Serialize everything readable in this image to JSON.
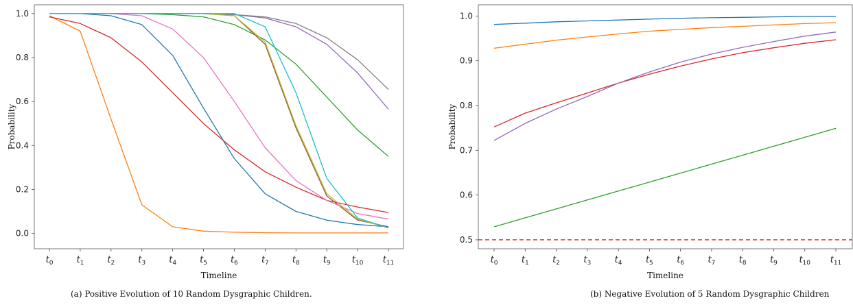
{
  "chart_data": [
    {
      "type": "line",
      "caption": "(a) Positive Evolution of 10 Random Dysgraphic Children.",
      "xlabel": "Timeline",
      "ylabel": "Probability",
      "categories": [
        "t_0",
        "t_1",
        "t_2",
        "t_3",
        "t_4",
        "t_5",
        "t_6",
        "t_7",
        "t_8",
        "t_9",
        "t_10",
        "t_11"
      ],
      "yticks": [
        "0.0",
        "0.2",
        "0.4",
        "0.6",
        "0.8",
        "1.0"
      ],
      "ylim": [
        -0.07,
        1.04
      ],
      "grid": false,
      "series": [
        {
          "color": "#1f77b4",
          "values": [
            1.0,
            1.0,
            0.99,
            0.95,
            0.81,
            0.57,
            0.34,
            0.18,
            0.1,
            0.06,
            0.04,
            0.03
          ]
        },
        {
          "color": "#ff7f0e",
          "values": [
            0.99,
            0.92,
            0.52,
            0.13,
            0.03,
            0.01,
            0.005,
            0.003,
            0.002,
            0.002,
            0.002,
            0.002
          ]
        },
        {
          "color": "#2ca02c",
          "values": [
            1.0,
            1.0,
            1.0,
            1.0,
            0.995,
            0.985,
            0.95,
            0.88,
            0.77,
            0.62,
            0.47,
            0.35
          ]
        },
        {
          "color": "#d62728",
          "values": [
            0.985,
            0.955,
            0.89,
            0.78,
            0.64,
            0.5,
            0.38,
            0.28,
            0.21,
            0.15,
            0.12,
            0.095
          ]
        },
        {
          "color": "#9467bd",
          "values": [
            1.0,
            1.0,
            1.0,
            1.0,
            1.0,
            1.0,
            0.995,
            0.98,
            0.94,
            0.86,
            0.73,
            0.565
          ]
        },
        {
          "color": "#8c564b",
          "values": [
            1.0,
            1.0,
            1.0,
            1.0,
            1.0,
            1.0,
            0.99,
            0.86,
            0.48,
            0.17,
            0.06,
            0.03
          ]
        },
        {
          "color": "#e377c2",
          "values": [
            1.0,
            1.0,
            1.0,
            0.99,
            0.93,
            0.8,
            0.6,
            0.39,
            0.24,
            0.15,
            0.09,
            0.065
          ]
        },
        {
          "color": "#7f7f7f",
          "values": [
            1.0,
            1.0,
            1.0,
            1.0,
            1.0,
            1.0,
            0.995,
            0.985,
            0.955,
            0.89,
            0.79,
            0.655
          ]
        },
        {
          "color": "#bcbd22",
          "values": [
            1.0,
            1.0,
            1.0,
            1.0,
            1.0,
            1.0,
            0.99,
            0.87,
            0.49,
            0.18,
            0.065,
            0.025
          ]
        },
        {
          "color": "#17becf",
          "values": [
            1.0,
            1.0,
            1.0,
            1.0,
            1.0,
            1.0,
            1.0,
            0.94,
            0.64,
            0.25,
            0.07,
            0.025
          ]
        }
      ]
    },
    {
      "type": "line",
      "caption": "(b) Negative Evolution of 5 Random Dysgraphic Children",
      "xlabel": "Timeline",
      "ylabel": "Probability",
      "categories": [
        "t_0",
        "t_1",
        "t_2",
        "t_3",
        "t_4",
        "t_5",
        "t_6",
        "t_7",
        "t_8",
        "t_9",
        "t_10",
        "t_11"
      ],
      "yticks": [
        "0.5",
        "0.6",
        "0.7",
        "0.8",
        "0.9",
        "1.0"
      ],
      "ylim": [
        0.48,
        1.025
      ],
      "grid": false,
      "reference_line": {
        "value": 0.5,
        "color": "#d62728",
        "style": "dashed"
      },
      "series": [
        {
          "color": "#1f77b4",
          "values": [
            0.981,
            0.984,
            0.987,
            0.989,
            0.991,
            0.993,
            0.995,
            0.996,
            0.997,
            0.998,
            0.999,
            0.999
          ]
        },
        {
          "color": "#ff7f0e",
          "values": [
            0.928,
            0.937,
            0.946,
            0.953,
            0.96,
            0.966,
            0.97,
            0.974,
            0.977,
            0.98,
            0.983,
            0.985
          ]
        },
        {
          "color": "#2ca02c",
          "values": [
            0.529,
            0.549,
            0.569,
            0.589,
            0.609,
            0.629,
            0.649,
            0.669,
            0.689,
            0.709,
            0.729,
            0.749
          ]
        },
        {
          "color": "#d62728",
          "values": [
            0.752,
            0.783,
            0.806,
            0.828,
            0.85,
            0.87,
            0.888,
            0.904,
            0.918,
            0.929,
            0.939,
            0.947
          ]
        },
        {
          "color": "#9467bd",
          "values": [
            0.722,
            0.76,
            0.792,
            0.82,
            0.85,
            0.875,
            0.897,
            0.915,
            0.93,
            0.943,
            0.955,
            0.964
          ]
        }
      ]
    }
  ]
}
